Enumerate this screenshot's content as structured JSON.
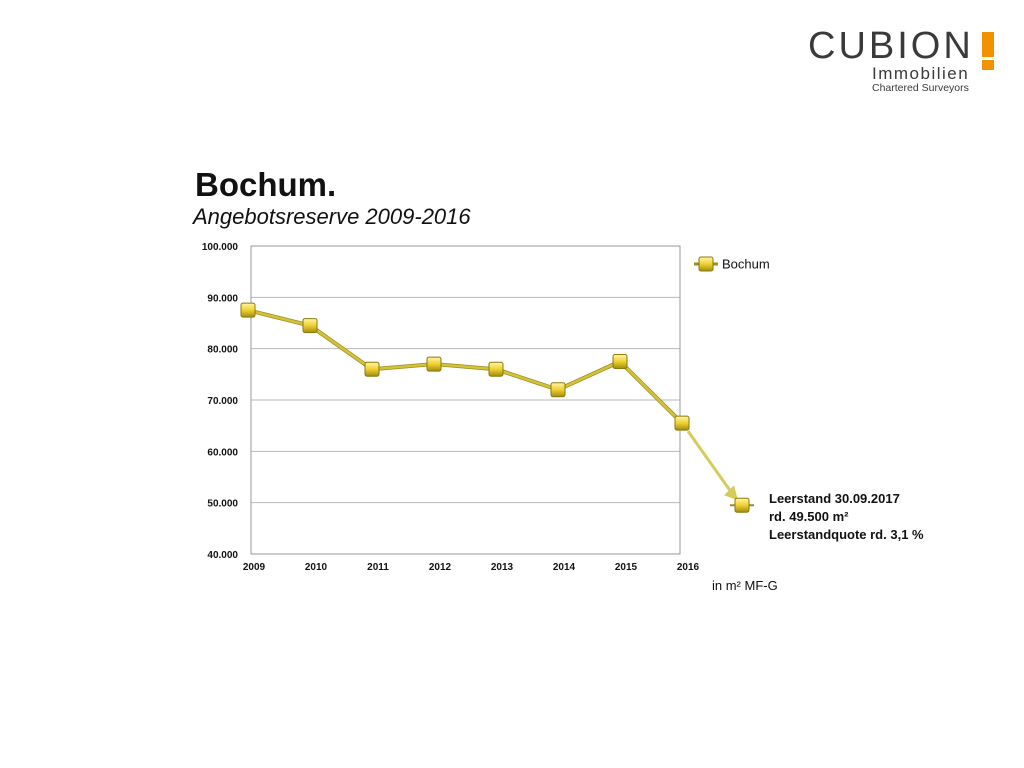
{
  "logo": {
    "name": "CUBION",
    "line1": "Immobilien",
    "line2": "Chartered Surveyors",
    "accent_color": "#f39200"
  },
  "chart_data": {
    "type": "line",
    "title": "Bochum.",
    "subtitle": "Angebotsreserve 2009-2016",
    "categories": [
      "2009",
      "2010",
      "2011",
      "2012",
      "2013",
      "2014",
      "2015",
      "2016"
    ],
    "series": [
      {
        "name": "Bochum",
        "values": [
          87500,
          84500,
          76000,
          77000,
          76000,
          72000,
          77500,
          65500
        ],
        "color": "#d4c23a"
      }
    ],
    "ylim": [
      40000,
      100000
    ],
    "yticks": [
      40000,
      50000,
      60000,
      70000,
      80000,
      90000,
      100000
    ],
    "ytick_labels": [
      "40.000",
      "50.000",
      "60.000",
      "70.000",
      "80.000",
      "90.000",
      "100.000"
    ],
    "grid": true,
    "legend_position": "top-right outside",
    "unit_label": "in m² MF-G",
    "annotation": {
      "value": 49500,
      "lines": [
        "Leerstand 30.09.2017",
        "rd. 49.500 m²",
        "Leerstandquote rd. 3,1 %"
      ]
    }
  }
}
